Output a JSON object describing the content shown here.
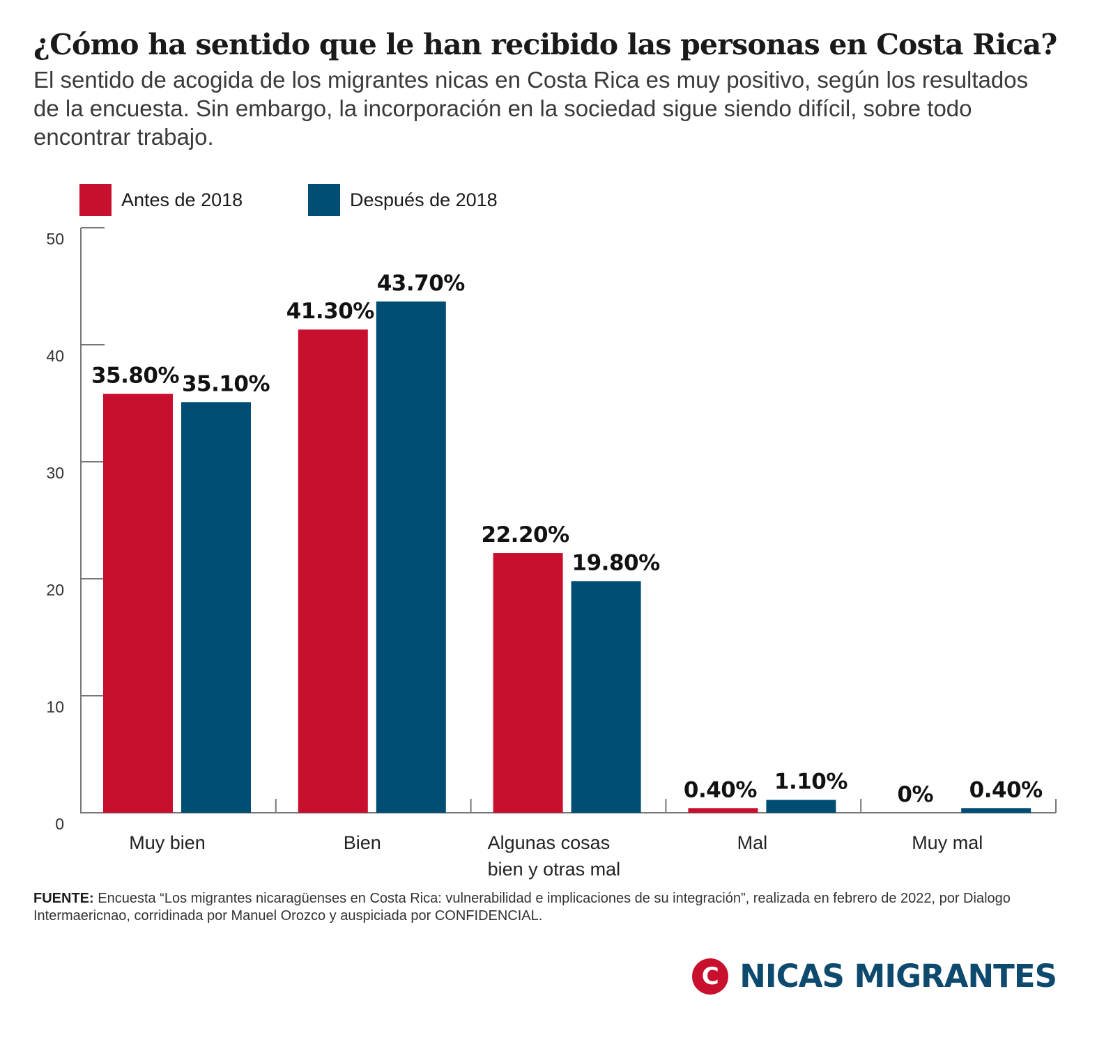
{
  "header": {
    "title": "¿Cómo ha sentido que le han recibido las personas en Costa Rica?",
    "subtitle": "El sentido de acogida de los migrantes nicas en Costa Rica es muy positivo, según los resultados de la encuesta. Sin embargo, la incorporación en la sociedad sigue siendo difícil, sobre todo encontrar trabajo."
  },
  "legend": [
    {
      "label": "Antes de 2018",
      "color": "#c8102e"
    },
    {
      "label": "Después de 2018",
      "color": "#004d73"
    }
  ],
  "chart_data": {
    "type": "bar",
    "categories": [
      "Muy bien",
      "Bien",
      "Algunas cosas bien y otras mal",
      "Mal",
      "Muy mal"
    ],
    "category_lines": [
      [
        "Muy bien"
      ],
      [
        "Bien"
      ],
      [
        "Algunas cosas",
        "bien y otras mal"
      ],
      [
        "Mal"
      ],
      [
        "Muy mal"
      ]
    ],
    "series": [
      {
        "name": "Antes de 2018",
        "color": "#c8102e",
        "values": [
          35.8,
          41.3,
          22.2,
          0.4,
          0
        ],
        "labels": [
          "35.80%",
          "41.30%",
          "22.20%",
          "0.40%",
          "0%"
        ]
      },
      {
        "name": "Después de 2018",
        "color": "#004d73",
        "values": [
          35.1,
          43.7,
          19.8,
          1.1,
          0.4
        ],
        "labels": [
          "35.10%",
          "43.70%",
          "19.80%",
          "1.10%",
          "0.40%"
        ]
      }
    ],
    "ylim": [
      0,
      50
    ],
    "yticks": [
      0,
      10,
      20,
      30,
      40,
      50
    ],
    "grid": false,
    "legend_position": "top-left",
    "xlabel": "",
    "ylabel": ""
  },
  "source": {
    "label": "FUENTE:",
    "text": "Encuesta “Los migrantes nicaragüenses en Costa Rica: vulnerabilidad e implicaciones de su integración”, realizada en febrero de 2022, por Dialogo Intermaericnao, corridinada por Manuel Orozco y auspiciada por CONFIDENCIAL."
  },
  "brand": {
    "logo_letter": "C",
    "name": "NICAS MIGRANTES"
  }
}
